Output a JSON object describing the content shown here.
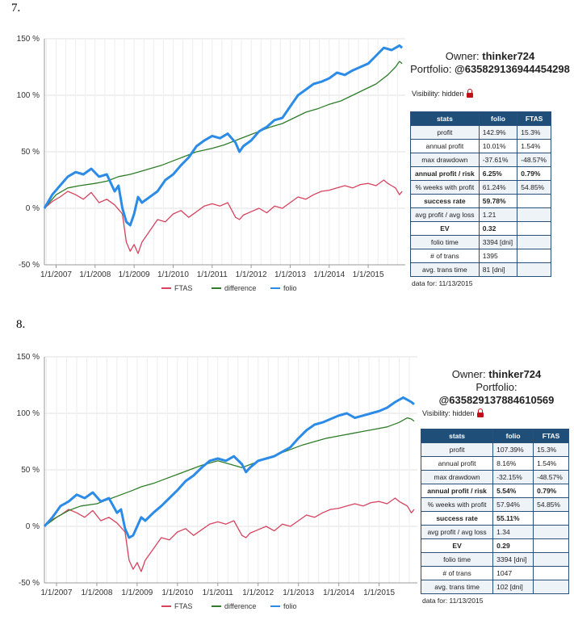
{
  "charts": [
    {
      "label": "7.",
      "owner_prefix": "Owner: ",
      "owner": "thinker724",
      "portfolio_prefix": "Portfolio: ",
      "portfolio": "@635829136944454298",
      "visibility": "Visibility: hidden",
      "stats_header": [
        "stats",
        "folio",
        "FTAS"
      ],
      "stats_rows": [
        {
          "label": "profit",
          "folio": "142.9%",
          "ftas": "15.3%",
          "bold": false
        },
        {
          "label": "annual profit",
          "folio": "10.01%",
          "ftas": "1.54%",
          "bold": false
        },
        {
          "label": "max drawdown",
          "folio": "-37.61%",
          "ftas": "-48.57%",
          "bold": false
        },
        {
          "label": "annual profit / risk",
          "folio": "6.25%",
          "ftas": "0.79%",
          "bold": true
        },
        {
          "label": "% weeks with profit",
          "folio": "61.24%",
          "ftas": "54.85%",
          "bold": false
        },
        {
          "label": "success rate",
          "folio": "59.78%",
          "ftas": "",
          "bold": true
        },
        {
          "label": "avg profit / avg loss",
          "folio": "1.21",
          "ftas": "",
          "bold": false
        },
        {
          "label": "EV",
          "folio": "0.32",
          "ftas": "",
          "bold": true
        },
        {
          "label": "folio time",
          "folio": "3394 [dni]",
          "ftas": "",
          "bold": false
        },
        {
          "label": "# of trans",
          "folio": "1395",
          "ftas": "",
          "bold": false
        },
        {
          "label": "avg. trans time",
          "folio": "81 [dni]",
          "ftas": "",
          "bold": false
        }
      ],
      "data_for": "data for: 11/13/2015",
      "chart_data": {
        "type": "line",
        "y_ticks": [
          "150 %",
          "100 %",
          "50 %",
          "0 %",
          "-50 %"
        ],
        "ylim": [
          -50,
          150
        ],
        "x_ticks": [
          "1/1/2007",
          "1/1/2008",
          "1/1/2009",
          "1/1/2010",
          "1/1/2011",
          "1/1/2012",
          "1/1/2013",
          "1/1/2014",
          "1/1/2015"
        ],
        "x_tick_years": [
          2007,
          2008,
          2009,
          2010,
          2011,
          2012,
          2013,
          2014,
          2015
        ],
        "xlim": [
          2006.7,
          2015.95
        ],
        "grid": true,
        "legend_position": "bottom",
        "series": [
          {
            "name": "FTAS",
            "color": "#d6435f",
            "x": [
              2006.7,
              2006.9,
              2007.1,
              2007.3,
              2007.5,
              2007.7,
              2007.9,
              2008.1,
              2008.3,
              2008.5,
              2008.7,
              2008.8,
              2008.9,
              2009.0,
              2009.1,
              2009.2,
              2009.4,
              2009.6,
              2009.8,
              2010.0,
              2010.2,
              2010.4,
              2010.6,
              2010.8,
              2011.0,
              2011.2,
              2011.4,
              2011.6,
              2011.7,
              2011.8,
              2012.0,
              2012.2,
              2012.4,
              2012.6,
              2012.8,
              2013.0,
              2013.2,
              2013.4,
              2013.6,
              2013.8,
              2014.0,
              2014.2,
              2014.4,
              2014.6,
              2014.8,
              2015.0,
              2015.2,
              2015.4,
              2015.5,
              2015.6,
              2015.7,
              2015.8,
              2015.87
            ],
            "y": [
              0,
              6,
              10,
              15,
              12,
              8,
              14,
              5,
              8,
              3,
              -5,
              -30,
              -38,
              -32,
              -40,
              -30,
              -20,
              -10,
              -12,
              -5,
              -2,
              -8,
              -3,
              2,
              4,
              2,
              5,
              -8,
              -10,
              -6,
              -3,
              0,
              -4,
              2,
              0,
              5,
              10,
              8,
              12,
              15,
              16,
              18,
              20,
              18,
              21,
              22,
              20,
              25,
              22,
              20,
              18,
              12,
              15
            ]
          },
          {
            "name": "difference",
            "color": "#2f7d2a",
            "x": [
              2006.7,
              2007.0,
              2007.3,
              2007.6,
              2008.0,
              2008.3,
              2008.6,
              2008.9,
              2009.1,
              2009.4,
              2009.7,
              2010.0,
              2010.3,
              2010.6,
              2011.0,
              2011.3,
              2011.6,
              2011.9,
              2012.2,
              2012.5,
              2012.8,
              2013.1,
              2013.4,
              2013.7,
              2014.0,
              2014.3,
              2014.6,
              2014.9,
              2015.2,
              2015.5,
              2015.7,
              2015.8,
              2015.87
            ],
            "y": [
              0,
              12,
              18,
              20,
              22,
              24,
              28,
              30,
              32,
              35,
              38,
              42,
              46,
              50,
              53,
              56,
              60,
              64,
              68,
              72,
              75,
              80,
              85,
              88,
              92,
              95,
              100,
              105,
              110,
              118,
              125,
              130,
              128
            ]
          },
          {
            "name": "folio",
            "color": "#2b8be6",
            "x": [
              2006.7,
              2006.9,
              2007.1,
              2007.3,
              2007.5,
              2007.7,
              2007.9,
              2008.1,
              2008.3,
              2008.5,
              2008.6,
              2008.7,
              2008.8,
              2008.9,
              2009.0,
              2009.1,
              2009.2,
              2009.4,
              2009.6,
              2009.8,
              2010.0,
              2010.2,
              2010.4,
              2010.6,
              2010.8,
              2011.0,
              2011.2,
              2011.4,
              2011.6,
              2011.7,
              2011.8,
              2012.0,
              2012.2,
              2012.4,
              2012.6,
              2012.8,
              2013.0,
              2013.2,
              2013.4,
              2013.6,
              2013.8,
              2014.0,
              2014.2,
              2014.4,
              2014.6,
              2014.8,
              2015.0,
              2015.2,
              2015.4,
              2015.6,
              2015.8,
              2015.87
            ],
            "y": [
              0,
              12,
              20,
              28,
              32,
              30,
              35,
              28,
              30,
              15,
              20,
              0,
              -12,
              -15,
              -5,
              10,
              5,
              10,
              15,
              25,
              30,
              38,
              45,
              55,
              60,
              64,
              62,
              66,
              58,
              50,
              55,
              60,
              68,
              72,
              78,
              80,
              90,
              100,
              105,
              110,
              112,
              115,
              120,
              118,
              122,
              125,
              128,
              135,
              142,
              140,
              144,
              142
            ]
          }
        ]
      }
    },
    {
      "label": "8.",
      "owner_prefix": "Owner: ",
      "owner": "thinker724",
      "portfolio_prefix": "Portfolio: ",
      "portfolio": "@635829137884610569",
      "visibility": "Visibility: hidden",
      "stats_header": [
        "stats",
        "folio",
        "FTAS"
      ],
      "stats_rows": [
        {
          "label": "profit",
          "folio": "107.39%",
          "ftas": "15.3%",
          "bold": false
        },
        {
          "label": "annual profit",
          "folio": "8.16%",
          "ftas": "1.54%",
          "bold": false
        },
        {
          "label": "max drawdown",
          "folio": "-32.15%",
          "ftas": "-48.57%",
          "bold": false
        },
        {
          "label": "annual profit / risk",
          "folio": "5.54%",
          "ftas": "0.79%",
          "bold": true
        },
        {
          "label": "% weeks with profit",
          "folio": "57.94%",
          "ftas": "54.85%",
          "bold": false
        },
        {
          "label": "success rate",
          "folio": "55.11%",
          "ftas": "",
          "bold": true
        },
        {
          "label": "avg profit / avg loss",
          "folio": "1.34",
          "ftas": "",
          "bold": false
        },
        {
          "label": "EV",
          "folio": "0.29",
          "ftas": "",
          "bold": true
        },
        {
          "label": "folio time",
          "folio": "3394 [dni]",
          "ftas": "",
          "bold": false
        },
        {
          "label": "# of trans",
          "folio": "1047",
          "ftas": "",
          "bold": false
        },
        {
          "label": "avg. trans time",
          "folio": "102 [dni]",
          "ftas": "",
          "bold": false
        }
      ],
      "data_for": "data for: 11/13/2015",
      "chart_data": {
        "type": "line",
        "y_ticks": [
          "150 %",
          "100 %",
          "50 %",
          "0 %",
          "-50 %"
        ],
        "ylim": [
          -50,
          150
        ],
        "x_ticks": [
          "1/1/2007",
          "1/1/2008",
          "1/1/2009",
          "1/1/2010",
          "1/1/2011",
          "1/1/2012",
          "1/1/2013",
          "1/1/2014",
          "1/1/2015"
        ],
        "x_tick_years": [
          2007,
          2008,
          2009,
          2010,
          2011,
          2012,
          2013,
          2014,
          2015
        ],
        "xlim": [
          2006.7,
          2015.95
        ],
        "grid": true,
        "legend_position": "bottom",
        "series": [
          {
            "name": "FTAS",
            "color": "#d6435f",
            "x": [
              2006.7,
              2006.9,
              2007.1,
              2007.3,
              2007.5,
              2007.7,
              2007.9,
              2008.1,
              2008.3,
              2008.5,
              2008.7,
              2008.8,
              2008.9,
              2009.0,
              2009.1,
              2009.2,
              2009.4,
              2009.6,
              2009.8,
              2010.0,
              2010.2,
              2010.4,
              2010.6,
              2010.8,
              2011.0,
              2011.2,
              2011.4,
              2011.6,
              2011.7,
              2011.8,
              2012.0,
              2012.2,
              2012.4,
              2012.6,
              2012.8,
              2013.0,
              2013.2,
              2013.4,
              2013.6,
              2013.8,
              2014.0,
              2014.2,
              2014.4,
              2014.6,
              2014.8,
              2015.0,
              2015.2,
              2015.4,
              2015.5,
              2015.6,
              2015.7,
              2015.8,
              2015.87
            ],
            "y": [
              0,
              6,
              10,
              15,
              12,
              8,
              14,
              5,
              8,
              3,
              -5,
              -30,
              -38,
              -32,
              -40,
              -30,
              -20,
              -10,
              -12,
              -5,
              -2,
              -8,
              -3,
              2,
              4,
              2,
              5,
              -8,
              -10,
              -6,
              -3,
              0,
              -4,
              2,
              0,
              5,
              10,
              8,
              12,
              15,
              16,
              18,
              20,
              18,
              21,
              22,
              20,
              25,
              22,
              20,
              18,
              12,
              15
            ]
          },
          {
            "name": "difference",
            "color": "#2f7d2a",
            "x": [
              2006.7,
              2007.0,
              2007.3,
              2007.6,
              2008.0,
              2008.3,
              2008.6,
              2008.9,
              2009.1,
              2009.4,
              2009.7,
              2010.0,
              2010.3,
              2010.6,
              2011.0,
              2011.3,
              2011.6,
              2011.9,
              2012.2,
              2012.5,
              2012.8,
              2013.1,
              2013.4,
              2013.7,
              2014.0,
              2014.3,
              2014.6,
              2014.9,
              2015.2,
              2015.5,
              2015.7,
              2015.8,
              2015.87
            ],
            "y": [
              0,
              8,
              14,
              18,
              20,
              24,
              28,
              32,
              35,
              38,
              42,
              46,
              50,
              54,
              58,
              55,
              52,
              56,
              60,
              64,
              68,
              72,
              75,
              78,
              80,
              82,
              84,
              86,
              88,
              92,
              96,
              95,
              93
            ]
          },
          {
            "name": "folio",
            "color": "#2b8be6",
            "x": [
              2006.7,
              2006.9,
              2007.1,
              2007.3,
              2007.5,
              2007.7,
              2007.9,
              2008.1,
              2008.3,
              2008.5,
              2008.6,
              2008.7,
              2008.8,
              2008.9,
              2009.0,
              2009.1,
              2009.2,
              2009.4,
              2009.6,
              2009.8,
              2010.0,
              2010.2,
              2010.4,
              2010.6,
              2010.8,
              2011.0,
              2011.2,
              2011.4,
              2011.6,
              2011.7,
              2011.8,
              2012.0,
              2012.2,
              2012.4,
              2012.6,
              2012.8,
              2013.0,
              2013.2,
              2013.4,
              2013.6,
              2013.8,
              2014.0,
              2014.2,
              2014.4,
              2014.6,
              2014.8,
              2015.0,
              2015.2,
              2015.4,
              2015.6,
              2015.8,
              2015.87
            ],
            "y": [
              0,
              8,
              18,
              22,
              28,
              25,
              30,
              22,
              25,
              12,
              15,
              -2,
              -10,
              -8,
              0,
              8,
              5,
              12,
              18,
              25,
              32,
              40,
              45,
              52,
              58,
              60,
              58,
              62,
              55,
              48,
              52,
              58,
              60,
              62,
              66,
              70,
              78,
              85,
              90,
              92,
              95,
              98,
              100,
              96,
              98,
              100,
              102,
              105,
              110,
              114,
              110,
              108
            ]
          }
        ]
      }
    }
  ]
}
